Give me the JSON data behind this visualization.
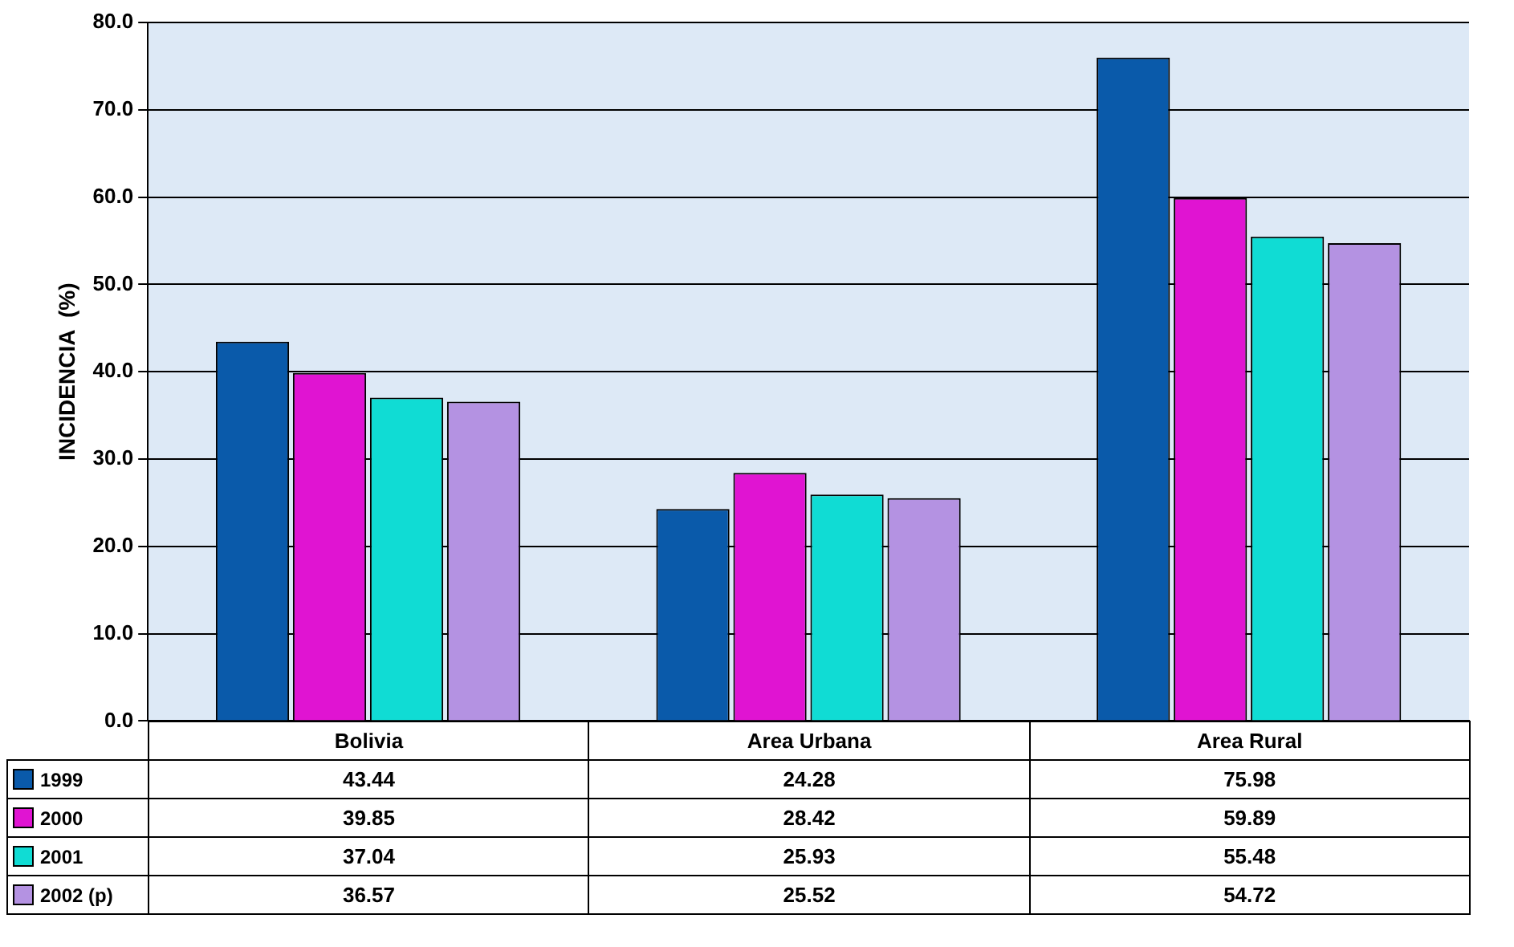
{
  "chart_data": {
    "type": "bar",
    "ylabel": "INCIDENCIA  (%)",
    "categories": [
      "Bolivia",
      "Area Urbana",
      "Area Rural"
    ],
    "series": [
      {
        "name": "1999",
        "color": "#0a5aaa",
        "values": [
          43.44,
          24.28,
          75.98
        ]
      },
      {
        "name": "2000",
        "color": "#e014d2",
        "values": [
          39.85,
          28.42,
          59.89
        ]
      },
      {
        "name": "2001",
        "color": "#10dcd4",
        "values": [
          37.04,
          25.93,
          55.48
        ]
      },
      {
        "name": "2002 (p)",
        "color": "#b492e2",
        "values": [
          36.57,
          25.52,
          54.72
        ]
      }
    ],
    "ylim": [
      0,
      80
    ],
    "yticks": [
      {
        "value": 0,
        "label": "0.0"
      },
      {
        "value": 10,
        "label": "10.0"
      },
      {
        "value": 20,
        "label": "20.0"
      },
      {
        "value": 30,
        "label": "30.0"
      },
      {
        "value": 40,
        "label": "40.0"
      },
      {
        "value": 50,
        "label": "50.0"
      },
      {
        "value": 60,
        "label": "60.0"
      },
      {
        "value": 70,
        "label": "70.0"
      },
      {
        "value": 80,
        "label": "80.0"
      }
    ],
    "grid": "y",
    "legend": "bottom",
    "data_labels": true
  }
}
